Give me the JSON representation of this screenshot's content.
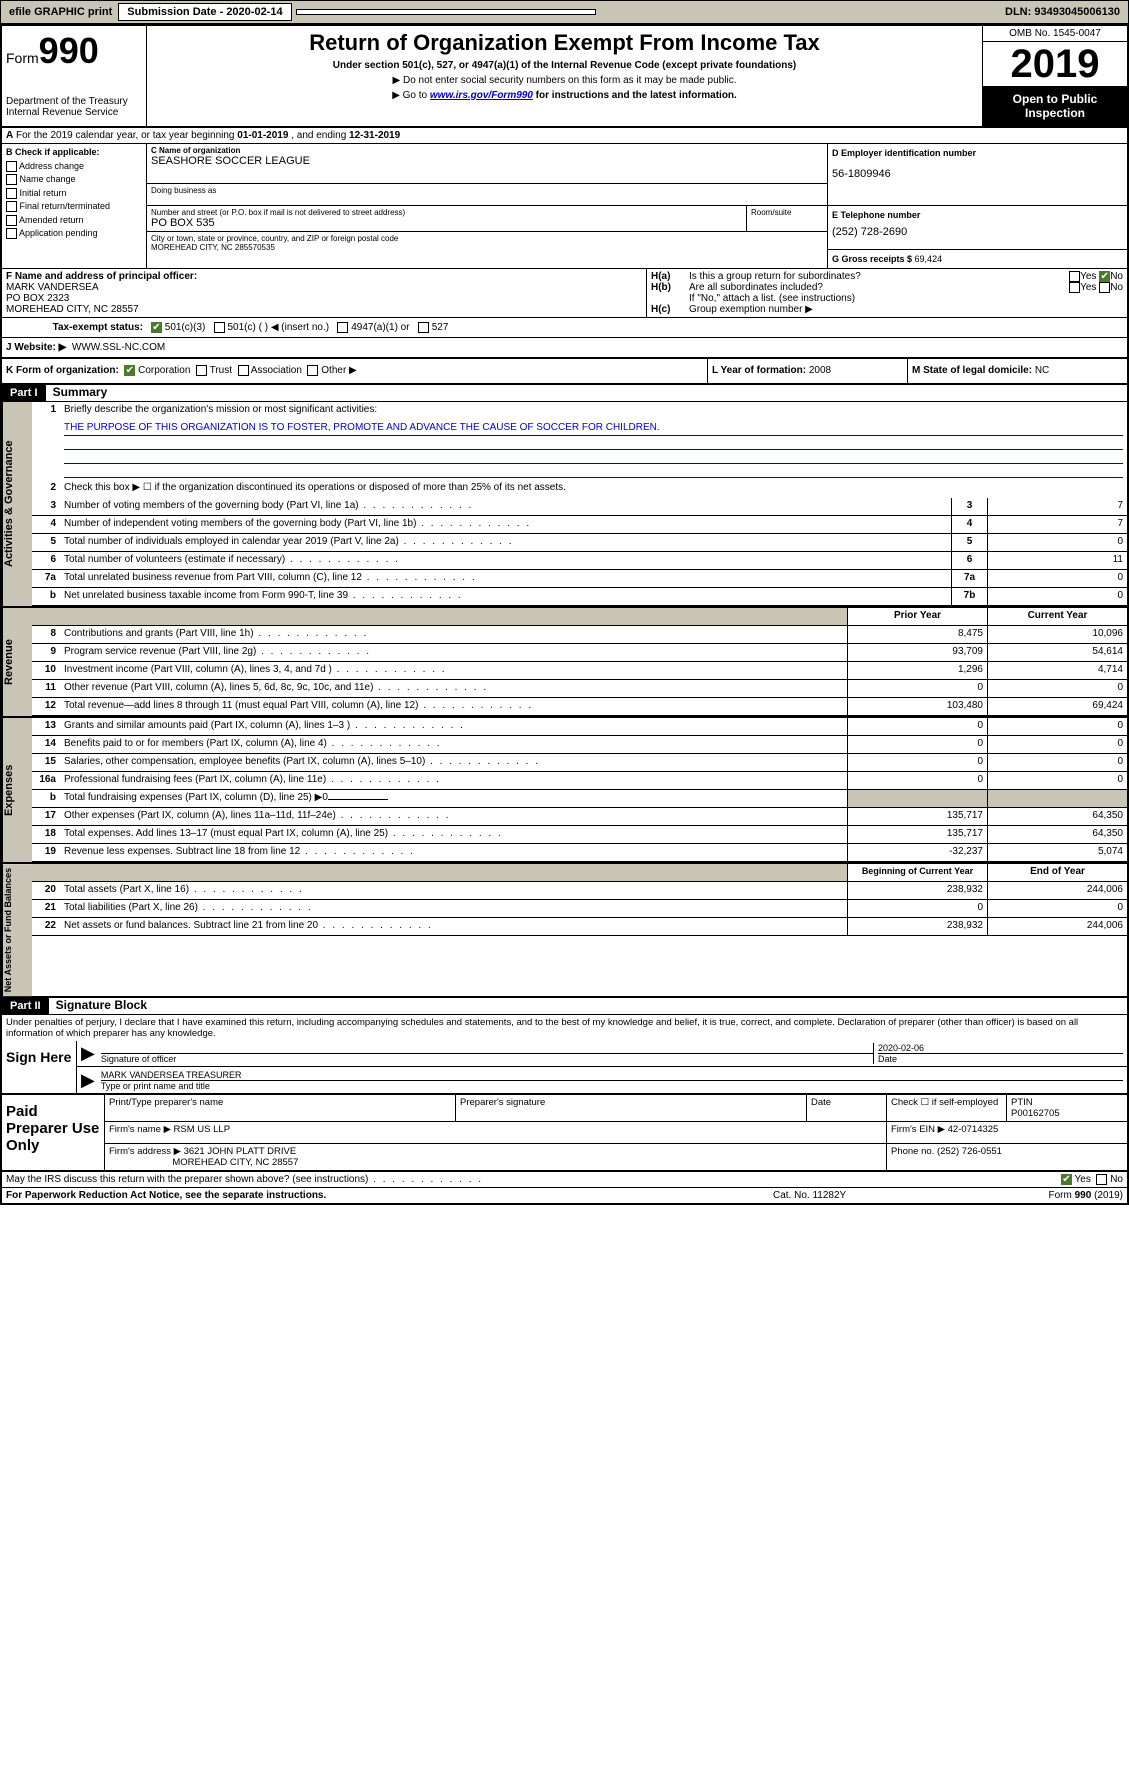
{
  "topbar": {
    "efile": "efile GRAPHIC print",
    "submission_label": "Submission Date - 2020-02-14",
    "dln": "DLN: 93493045006130"
  },
  "header": {
    "form_prefix": "Form",
    "form_number": "990",
    "dept": "Department of the Treasury\nInternal Revenue Service",
    "title": "Return of Organization Exempt From Income Tax",
    "subtitle": "Under section 501(c), 527, or 4947(a)(1) of the Internal Revenue Code (except private foundations)",
    "note1": "▶ Do not enter social security numbers on this form as it may be made public.",
    "note2_pre": "▶ Go to ",
    "note2_link": "www.irs.gov/Form990",
    "note2_post": " for instructions and the latest information.",
    "omb": "OMB No. 1545-0047",
    "year": "2019",
    "open": "Open to Public Inspection"
  },
  "lineA": {
    "prefix": "A",
    "text": "For the 2019 calendar year, or tax year beginning ",
    "begin": "01-01-2019",
    "mid": " , and ending ",
    "end": "12-31-2019"
  },
  "boxB": {
    "label": "B Check if applicable:",
    "opts": [
      "Address change",
      "Name change",
      "Initial return",
      "Final return/terminated",
      "Amended return",
      "Application pending"
    ]
  },
  "boxC": {
    "name_label": "C Name of organization",
    "name": "SEASHORE SOCCER LEAGUE",
    "dba_label": "Doing business as",
    "addr_label": "Number and street (or P.O. box if mail is not delivered to street address)",
    "addr": "PO BOX 535",
    "room_label": "Room/suite",
    "city_label": "City or town, state or province, country, and ZIP or foreign postal code",
    "city": "MOREHEAD CITY, NC  285570535"
  },
  "boxD": {
    "label": "D Employer identification number",
    "value": "56-1809946"
  },
  "boxE": {
    "label": "E Telephone number",
    "value": "(252) 728-2690"
  },
  "boxG": {
    "label": "G Gross receipts $ ",
    "value": "69,424"
  },
  "boxF": {
    "label": "F Name and address of principal officer:",
    "name": "MARK VANDERSEA",
    "addr1": "PO BOX 2323",
    "addr2": "MOREHEAD CITY, NC  28557"
  },
  "boxH": {
    "a_label": "Is this a group return for subordinates?",
    "a_yes": "Yes",
    "a_no": "No",
    "b_label": "Are all subordinates included?",
    "b_yes": "Yes",
    "b_no": "No",
    "b_note": "If \"No,\" attach a list. (see instructions)",
    "c_label": "Group exemption number ▶"
  },
  "boxI": {
    "label": "Tax-exempt status:",
    "opts": [
      "501(c)(3)",
      "501(c) (   ) ◀ (insert no.)",
      "4947(a)(1) or",
      "527"
    ]
  },
  "boxJ": {
    "label": "J   Website: ▶",
    "value": "WWW.SSL-NC.COM"
  },
  "boxK": {
    "label": "K Form of organization:",
    "opts": [
      "Corporation",
      "Trust",
      "Association",
      "Other ▶"
    ]
  },
  "boxL": {
    "label": "L Year of formation: ",
    "value": "2008"
  },
  "boxM": {
    "label": "M State of legal domicile: ",
    "value": "NC"
  },
  "part1": {
    "label": "Part I",
    "title": "Summary"
  },
  "summary": {
    "tab1": "Activities & Governance",
    "tab2": "Revenue",
    "tab3": "Expenses",
    "tab4": "Net Assets or Fund Balances",
    "line1_label": "Briefly describe the organization's mission or most significant activities:",
    "line1_text": "THE PURPOSE OF THIS ORGANIZATION IS TO FOSTER, PROMOTE AND ADVANCE THE CAUSE OF SOCCER FOR CHILDREN.",
    "line2": "Check this box ▶ ☐ if the organization discontinued its operations or disposed of more than 25% of its net assets.",
    "rows_a": [
      {
        "n": "3",
        "d": "Number of voting members of the governing body (Part VI, line 1a)",
        "box": "3",
        "v": "7"
      },
      {
        "n": "4",
        "d": "Number of independent voting members of the governing body (Part VI, line 1b)",
        "box": "4",
        "v": "7"
      },
      {
        "n": "5",
        "d": "Total number of individuals employed in calendar year 2019 (Part V, line 2a)",
        "box": "5",
        "v": "0"
      },
      {
        "n": "6",
        "d": "Total number of volunteers (estimate if necessary)",
        "box": "6",
        "v": "11"
      },
      {
        "n": "7a",
        "d": "Total unrelated business revenue from Part VIII, column (C), line 12",
        "box": "7a",
        "v": "0"
      },
      {
        "n": "b",
        "d": "Net unrelated business taxable income from Form 990-T, line 39",
        "box": "7b",
        "v": "0"
      }
    ],
    "hdr_prior": "Prior Year",
    "hdr_curr": "Current Year",
    "rows_r": [
      {
        "n": "8",
        "d": "Contributions and grants (Part VIII, line 1h)",
        "p": "8,475",
        "c": "10,096"
      },
      {
        "n": "9",
        "d": "Program service revenue (Part VIII, line 2g)",
        "p": "93,709",
        "c": "54,614"
      },
      {
        "n": "10",
        "d": "Investment income (Part VIII, column (A), lines 3, 4, and 7d )",
        "p": "1,296",
        "c": "4,714"
      },
      {
        "n": "11",
        "d": "Other revenue (Part VIII, column (A), lines 5, 6d, 8c, 9c, 10c, and 11e)",
        "p": "0",
        "c": "0"
      },
      {
        "n": "12",
        "d": "Total revenue—add lines 8 through 11 (must equal Part VIII, column (A), line 12)",
        "p": "103,480",
        "c": "69,424"
      }
    ],
    "rows_e": [
      {
        "n": "13",
        "d": "Grants and similar amounts paid (Part IX, column (A), lines 1–3 )",
        "p": "0",
        "c": "0"
      },
      {
        "n": "14",
        "d": "Benefits paid to or for members (Part IX, column (A), line 4)",
        "p": "0",
        "c": "0"
      },
      {
        "n": "15",
        "d": "Salaries, other compensation, employee benefits (Part IX, column (A), lines 5–10)",
        "p": "0",
        "c": "0"
      },
      {
        "n": "16a",
        "d": "Professional fundraising fees (Part IX, column (A), line 11e)",
        "p": "0",
        "c": "0"
      }
    ],
    "row_16b": {
      "n": "b",
      "d": "Total fundraising expenses (Part IX, column (D), line 25) ▶0"
    },
    "rows_e2": [
      {
        "n": "17",
        "d": "Other expenses (Part IX, column (A), lines 11a–11d, 11f–24e)",
        "p": "135,717",
        "c": "64,350"
      },
      {
        "n": "18",
        "d": "Total expenses. Add lines 13–17 (must equal Part IX, column (A), line 25)",
        "p": "135,717",
        "c": "64,350"
      },
      {
        "n": "19",
        "d": "Revenue less expenses. Subtract line 18 from line 12",
        "p": "-32,237",
        "c": "5,074"
      }
    ],
    "hdr_beg": "Beginning of Current Year",
    "hdr_end": "End of Year",
    "rows_n": [
      {
        "n": "20",
        "d": "Total assets (Part X, line 16)",
        "p": "238,932",
        "c": "244,006"
      },
      {
        "n": "21",
        "d": "Total liabilities (Part X, line 26)",
        "p": "0",
        "c": "0"
      },
      {
        "n": "22",
        "d": "Net assets or fund balances. Subtract line 21 from line 20",
        "p": "238,932",
        "c": "244,006"
      }
    ]
  },
  "part2": {
    "label": "Part II",
    "title": "Signature Block"
  },
  "sig": {
    "decl": "Under penalties of perjury, I declare that I have examined this return, including accompanying schedules and statements, and to the best of my knowledge and belief, it is true, correct, and complete. Declaration of preparer (other than officer) is based on all information of which preparer has any knowledge.",
    "sign_here": "Sign Here",
    "sig_officer": "Signature of officer",
    "date_label": "Date",
    "date": "2020-02-06",
    "name_title": "MARK VANDERSEA  TREASURER",
    "name_label": "Type or print name and title"
  },
  "paid": {
    "label": "Paid Preparer Use Only",
    "h_name": "Print/Type preparer's name",
    "h_sig": "Preparer's signature",
    "h_date": "Date",
    "h_check": "Check ☐ if self-employed",
    "h_ptin": "PTIN",
    "ptin": "P00162705",
    "firm_name_l": "Firm's name    ▶",
    "firm_name": "RSM US LLP",
    "firm_ein_l": "Firm's EIN ▶",
    "firm_ein": "42-0714325",
    "firm_addr_l": "Firm's address ▶",
    "firm_addr1": "3621 JOHN PLATT DRIVE",
    "firm_addr2": "MOREHEAD CITY, NC  28557",
    "phone_l": "Phone no.",
    "phone": "(252) 726-0551"
  },
  "discuss": {
    "text": "May the IRS discuss this return with the preparer shown above? (see instructions)",
    "yes": "Yes",
    "no": "No"
  },
  "footer": {
    "notice": "For Paperwork Reduction Act Notice, see the separate instructions.",
    "cat": "Cat. No. 11282Y",
    "form": "Form 990 (2019)"
  }
}
